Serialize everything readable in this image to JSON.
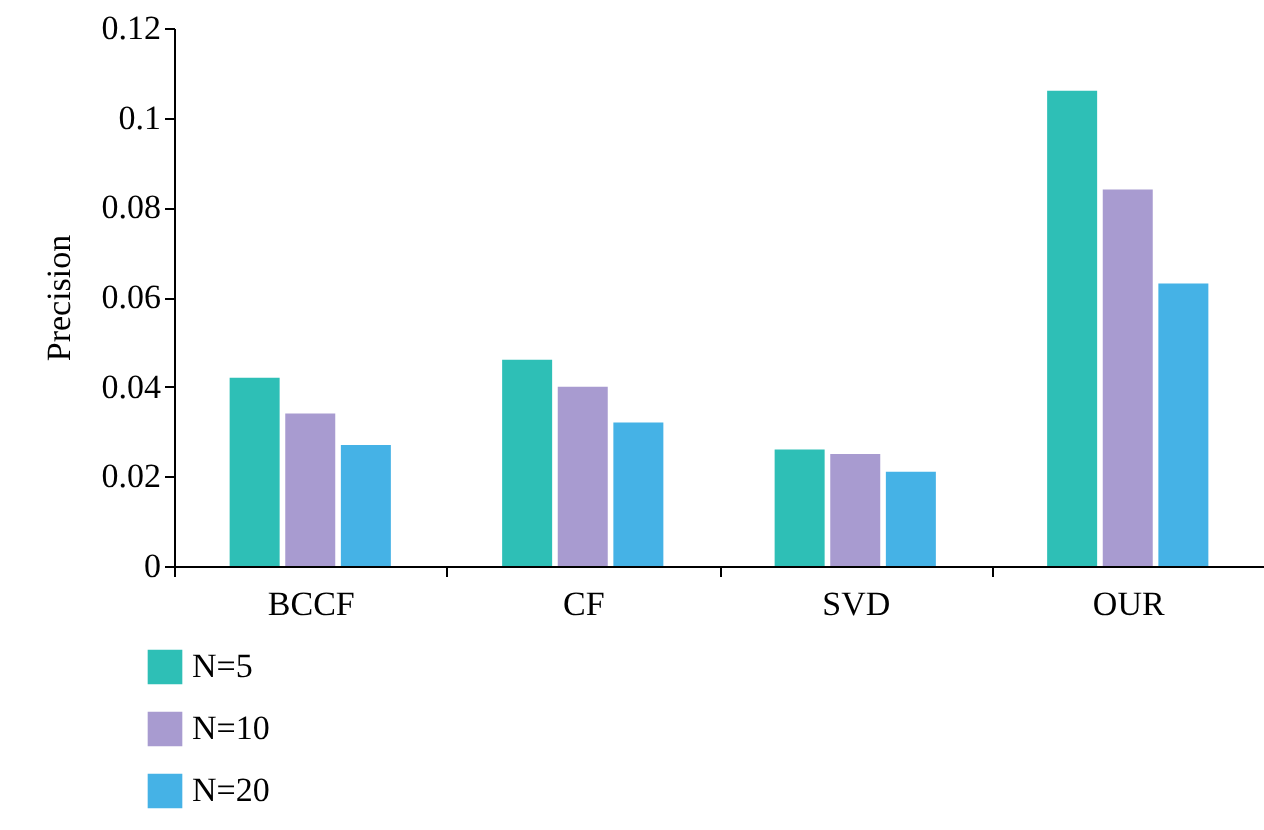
{
  "chart_data": {
    "type": "bar",
    "ylabel": "Precision",
    "categories": [
      "BCCF",
      "CF",
      "SVD",
      "OUR"
    ],
    "series": [
      {
        "name": "N=5",
        "color": "#2ebfb6",
        "values": [
          0.042,
          0.046,
          0.026,
          0.106
        ]
      },
      {
        "name": "N=10",
        "color": "#a89bd0",
        "values": [
          0.034,
          0.04,
          0.025,
          0.084
        ]
      },
      {
        "name": "N=20",
        "color": "#45b2e6",
        "values": [
          0.027,
          0.032,
          0.021,
          0.063
        ]
      }
    ],
    "ylim": [
      0,
      0.12
    ],
    "yticks": [
      0,
      0.02,
      0.04,
      0.06,
      0.08,
      0.1,
      0.12
    ],
    "grid": false,
    "legend": "bottom left"
  }
}
